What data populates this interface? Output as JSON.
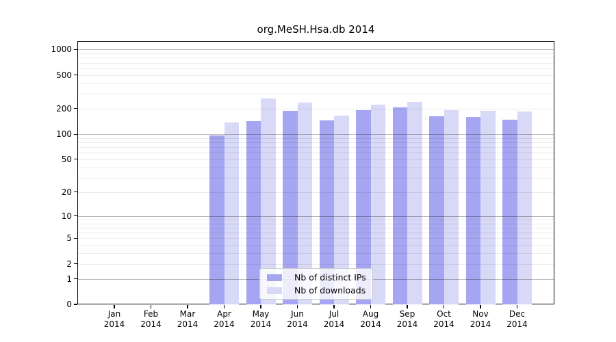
{
  "title": "org.MeSH.Hsa.db 2014",
  "chart_data": {
    "type": "bar",
    "title": "org.MeSH.Hsa.db 2014",
    "xlabel": "",
    "ylabel": "",
    "year_label": "2014",
    "categories": [
      "Jan",
      "Feb",
      "Mar",
      "Apr",
      "May",
      "Jun",
      "Jul",
      "Aug",
      "Sep",
      "Oct",
      "Nov",
      "Dec"
    ],
    "series": [
      {
        "name": "Nb of distinct IPs",
        "color": "#a5a5f1",
        "values": [
          0,
          0,
          0,
          96,
          143,
          190,
          147,
          192,
          206,
          162,
          160,
          149
        ]
      },
      {
        "name": "Nb of downloads",
        "color": "#d8d8f7",
        "values": [
          0,
          0,
          0,
          139,
          264,
          237,
          166,
          224,
          242,
          193,
          190,
          187
        ]
      }
    ],
    "yscale": "log10(1+x)",
    "ylim": [
      0,
      1260
    ],
    "yticks": [
      1000,
      500,
      200,
      100,
      50,
      20,
      10,
      5,
      2,
      1,
      0
    ],
    "grid": "horizontal",
    "legend_position": "inside-bottom-center"
  }
}
